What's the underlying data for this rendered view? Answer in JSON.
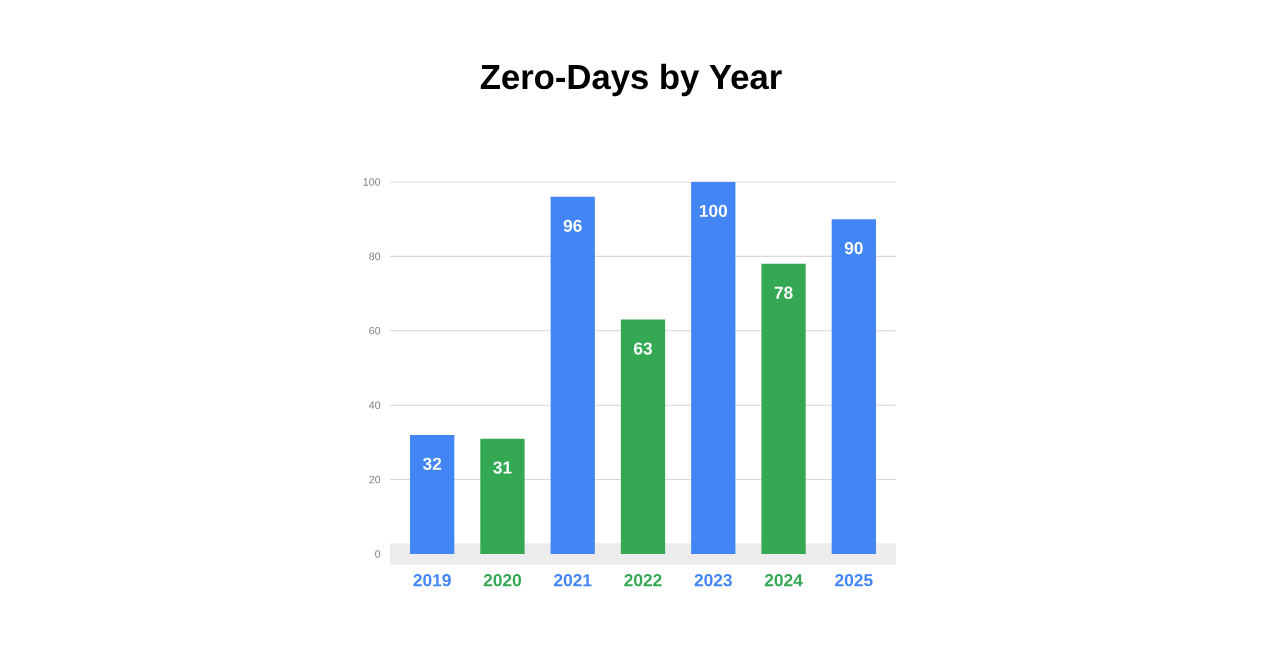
{
  "chart_data": {
    "type": "bar",
    "title": "Zero-Days by Year",
    "categories": [
      "2019",
      "2020",
      "2021",
      "2022",
      "2023",
      "2024",
      "2025"
    ],
    "values": [
      32,
      31,
      96,
      63,
      100,
      78,
      90
    ],
    "value_labels": [
      "32",
      "31",
      "96",
      "63",
      "100",
      "78",
      "90"
    ],
    "colors": [
      "#4285f4",
      "#34a853",
      "#4285f4",
      "#34a853",
      "#4285f4",
      "#34a853",
      "#4285f4"
    ],
    "ylim": [
      0,
      100
    ],
    "yticks": [
      0,
      20,
      40,
      60,
      80,
      100
    ],
    "grid": "y"
  }
}
